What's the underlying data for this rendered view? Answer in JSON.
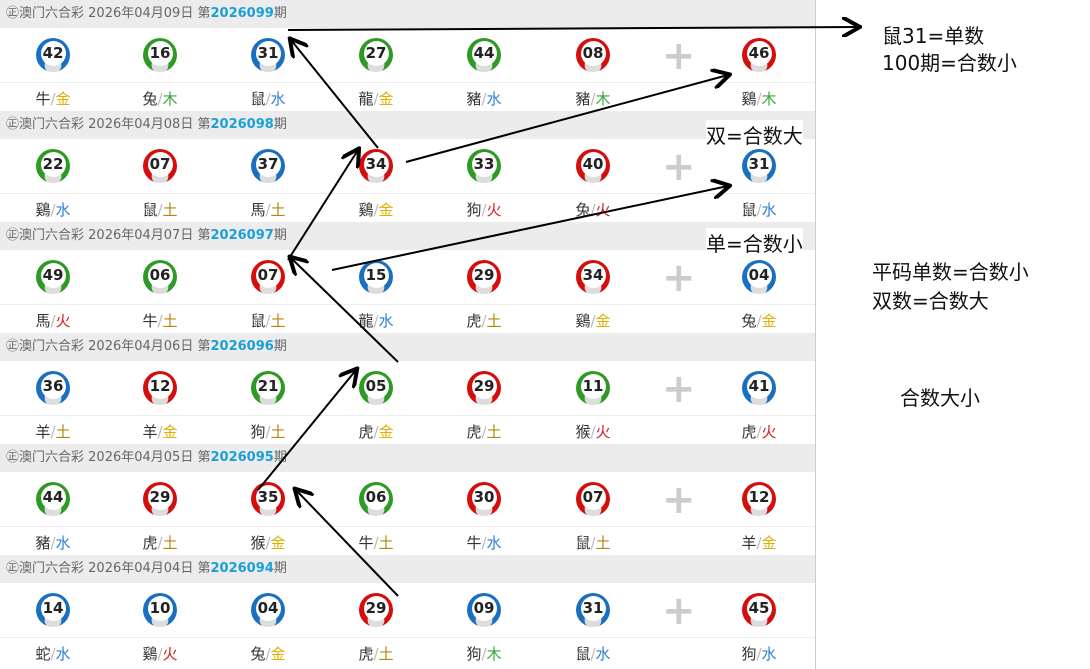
{
  "lottery_name": "㊣澳门六合彩",
  "draws": [
    {
      "date": "2026年04月09日",
      "prefix": "第",
      "period": "2026099",
      "suffix": "期",
      "numbers": [
        {
          "n": "42",
          "c": "blue",
          "z": "牛",
          "e": "金"
        },
        {
          "n": "16",
          "c": "green",
          "z": "兔",
          "e": "木"
        },
        {
          "n": "31",
          "c": "blue",
          "z": "鼠",
          "e": "水"
        },
        {
          "n": "27",
          "c": "green",
          "z": "龍",
          "e": "金"
        },
        {
          "n": "44",
          "c": "green",
          "z": "豬",
          "e": "水"
        },
        {
          "n": "08",
          "c": "red",
          "z": "豬",
          "e": "木"
        },
        {
          "n": "46",
          "c": "red",
          "z": "鷄",
          "e": "木"
        }
      ]
    },
    {
      "date": "2026年04月08日",
      "prefix": "第",
      "period": "2026098",
      "suffix": "期",
      "numbers": [
        {
          "n": "22",
          "c": "green",
          "z": "鷄",
          "e": "水"
        },
        {
          "n": "07",
          "c": "red",
          "z": "鼠",
          "e": "土"
        },
        {
          "n": "37",
          "c": "blue",
          "z": "馬",
          "e": "土"
        },
        {
          "n": "34",
          "c": "red",
          "z": "鷄",
          "e": "金"
        },
        {
          "n": "33",
          "c": "green",
          "z": "狗",
          "e": "火"
        },
        {
          "n": "40",
          "c": "red",
          "z": "兔",
          "e": "火"
        },
        {
          "n": "31",
          "c": "blue",
          "z": "鼠",
          "e": "水"
        }
      ]
    },
    {
      "date": "2026年04月07日",
      "prefix": "第",
      "period": "2026097",
      "suffix": "期",
      "numbers": [
        {
          "n": "49",
          "c": "green",
          "z": "馬",
          "e": "火"
        },
        {
          "n": "06",
          "c": "green",
          "z": "牛",
          "e": "土"
        },
        {
          "n": "07",
          "c": "red",
          "z": "鼠",
          "e": "土"
        },
        {
          "n": "15",
          "c": "blue",
          "z": "龍",
          "e": "水"
        },
        {
          "n": "29",
          "c": "red",
          "z": "虎",
          "e": "土"
        },
        {
          "n": "34",
          "c": "red",
          "z": "鷄",
          "e": "金"
        },
        {
          "n": "04",
          "c": "blue",
          "z": "兔",
          "e": "金"
        }
      ]
    },
    {
      "date": "2026年04月06日",
      "prefix": "第",
      "period": "2026096",
      "suffix": "期",
      "numbers": [
        {
          "n": "36",
          "c": "blue",
          "z": "羊",
          "e": "土"
        },
        {
          "n": "12",
          "c": "red",
          "z": "羊",
          "e": "金"
        },
        {
          "n": "21",
          "c": "green",
          "z": "狗",
          "e": "土"
        },
        {
          "n": "05",
          "c": "green",
          "z": "虎",
          "e": "金"
        },
        {
          "n": "29",
          "c": "red",
          "z": "虎",
          "e": "土"
        },
        {
          "n": "11",
          "c": "green",
          "z": "猴",
          "e": "火"
        },
        {
          "n": "41",
          "c": "blue",
          "z": "虎",
          "e": "火"
        }
      ]
    },
    {
      "date": "2026年04月05日",
      "prefix": "第",
      "period": "2026095",
      "suffix": "期",
      "numbers": [
        {
          "n": "44",
          "c": "green",
          "z": "豬",
          "e": "水"
        },
        {
          "n": "29",
          "c": "red",
          "z": "虎",
          "e": "土"
        },
        {
          "n": "35",
          "c": "red",
          "z": "猴",
          "e": "金"
        },
        {
          "n": "06",
          "c": "green",
          "z": "牛",
          "e": "土"
        },
        {
          "n": "30",
          "c": "red",
          "z": "牛",
          "e": "水"
        },
        {
          "n": "07",
          "c": "red",
          "z": "鼠",
          "e": "土"
        },
        {
          "n": "12",
          "c": "red",
          "z": "羊",
          "e": "金"
        }
      ]
    },
    {
      "date": "2026年04月04日",
      "prefix": "第",
      "period": "2026094",
      "suffix": "期",
      "numbers": [
        {
          "n": "14",
          "c": "blue",
          "z": "蛇",
          "e": "水"
        },
        {
          "n": "10",
          "c": "blue",
          "z": "鷄",
          "e": "火"
        },
        {
          "n": "04",
          "c": "blue",
          "z": "兔",
          "e": "金"
        },
        {
          "n": "29",
          "c": "red",
          "z": "虎",
          "e": "土"
        },
        {
          "n": "09",
          "c": "blue",
          "z": "狗",
          "e": "木"
        },
        {
          "n": "31",
          "c": "blue",
          "z": "鼠",
          "e": "水"
        },
        {
          "n": "45",
          "c": "red",
          "z": "狗",
          "e": "水"
        }
      ]
    }
  ],
  "plus_icon": "plus-icon",
  "element_colors": {
    "金": "#e0b000",
    "木": "#3aa63a",
    "水": "#2f7fd0",
    "火": "#d42020",
    "土": "#b8860b"
  },
  "notes": {
    "n1": "鼠31=单数",
    "n2": "100期=合数小",
    "n3": "双=合数大",
    "n4": "单=合数小",
    "n5": "平码单数=合数小",
    "n6": "双数=合数大",
    "n7": "合数大小"
  }
}
